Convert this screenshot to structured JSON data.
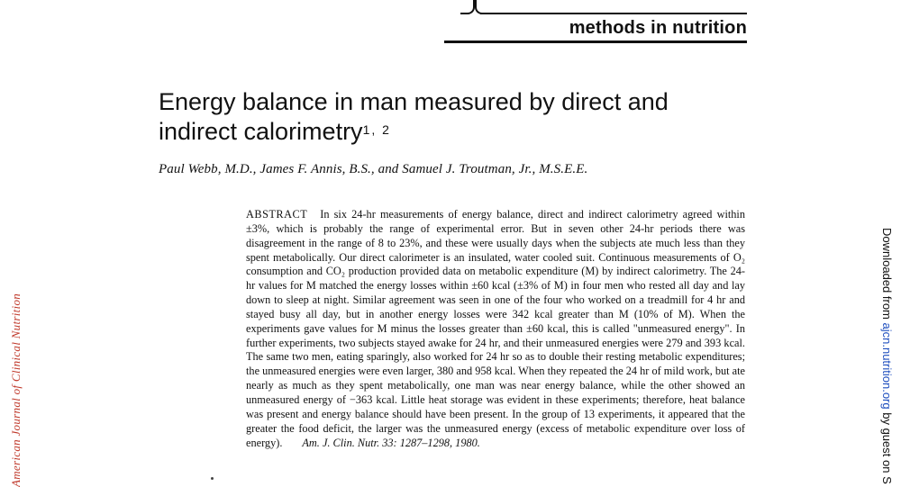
{
  "header": {
    "section": "methods in nutrition"
  },
  "title": {
    "line1": "Energy balance in man measured by direct and",
    "line2": "indirect calorimetry",
    "footnote_marks": "1, 2"
  },
  "authors": "Paul Webb, M.D., James F. Annis, B.S., and Samuel J. Troutman, Jr., M.S.E.E.",
  "abstract": {
    "heading": "ABSTRACT",
    "body": "In six 24-hr measurements of energy balance, direct and indirect calorimetry agreed within ±3%, which is probably the range of experimental error. But in seven other 24-hr periods there was disagreement in the range of 8 to 23%, and these were usually days when the subjects ate much less than they spent metabolically. Our direct calorimeter is an insulated, water cooled suit. Continuous measurements of O₂ consumption and CO₂ production provided data on metabolic expenditure (M) by indirect calorimetry. The 24-hr values for M matched the energy losses within ±60 kcal (±3% of M) in four men who rested all day and lay down to sleep at night. Similar agreement was seen in one of the four who worked on a treadmill for 4 hr and stayed busy all day, but in another energy losses were 342 kcal greater than M (10% of M). When the experiments gave values for M minus the losses greater than ±60 kcal, this is called \"unmeasured energy\". In further experiments, two subjects stayed awake for 24 hr, and their unmeasured energies were 279 and 393 kcal. The same two men, eating sparingly, also worked for 24 hr so as to double their resting metabolic expenditures; the unmeasured energies were even larger, 380 and 958 kcal. When they repeated the 24 hr of mild work, but ate nearly as much as they spent metabolically, one man was near energy balance, while the other showed an unmeasured energy of −363 kcal. Little heat storage was evident in these experiments; therefore, heat balance was present and energy balance should have been present. In the group of 13 experiments, it appeared that the greater the food deficit, the larger was the unmeasured energy (excess of metabolic expenditure over loss of energy).",
    "citation": "Am. J. Clin. Nutr. 33: 1287–1298, 1980."
  },
  "side_left": "American Journal of Clinical Nutrition",
  "side_right": {
    "prefix": "Downloaded from ",
    "link": "ajcn.nutrition.org",
    "suffix": " by guest on S"
  }
}
